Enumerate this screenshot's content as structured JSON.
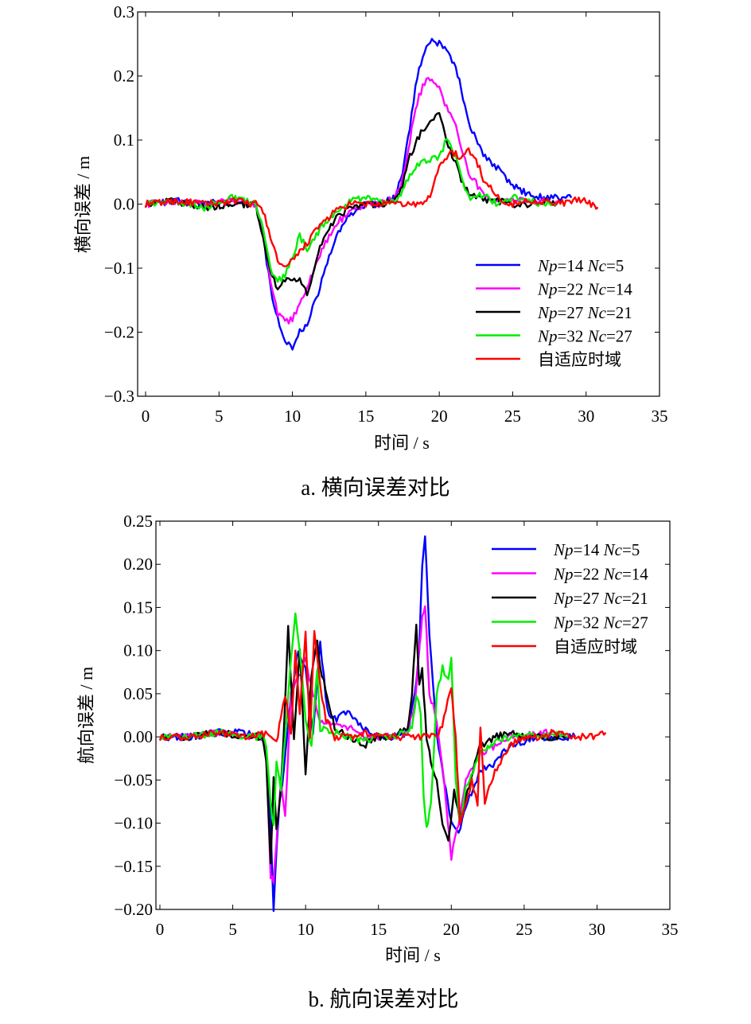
{
  "chart_data": [
    {
      "type": "line",
      "caption": "a. 横向误差对比",
      "xlabel": "时间 / s",
      "ylabel": "横向误差 / m",
      "xlim": [
        0,
        35
      ],
      "ylim": [
        -0.3,
        0.3
      ],
      "xticks": [
        0,
        5,
        10,
        15,
        20,
        25,
        30,
        35
      ],
      "xtick_labels": [
        "0",
        "5",
        "10",
        "15",
        "20",
        "25",
        "30",
        "35"
      ],
      "yticks": [
        -0.3,
        -0.2,
        -0.1,
        0.0,
        0.1,
        0.2,
        0.3
      ],
      "ytick_labels": [
        "−0.3",
        "−0.2",
        "−0.1",
        "0.0",
        "0.1",
        "0.2",
        "0.3"
      ],
      "legend_position": "lower-right",
      "grid": false,
      "series": [
        {
          "name": "Np=14 Nc=5",
          "name_parts": [
            "Np",
            "=14 ",
            "Nc",
            "=5"
          ],
          "color": "#0000ff",
          "x": [
            0,
            2,
            4,
            6,
            7.5,
            8,
            8.5,
            9,
            9.5,
            10,
            10.5,
            11,
            12,
            13,
            14,
            15,
            16,
            17,
            17.5,
            18,
            18.5,
            19,
            19.5,
            20,
            20.5,
            21,
            21.5,
            22,
            22.5,
            23,
            24,
            25,
            26,
            27,
            28,
            29
          ],
          "y": [
            0.0,
            0.005,
            0.0,
            0.005,
            0.0,
            -0.05,
            -0.13,
            -0.18,
            -0.21,
            -0.225,
            -0.2,
            -0.19,
            -0.12,
            -0.05,
            -0.015,
            0.0,
            0.0,
            0.01,
            0.05,
            0.12,
            0.2,
            0.24,
            0.255,
            0.25,
            0.24,
            0.22,
            0.18,
            0.13,
            0.1,
            0.08,
            0.055,
            0.03,
            0.015,
            0.01,
            0.01,
            0.01
          ]
        },
        {
          "name": "Np=22 Nc=14",
          "name_parts": [
            "Np",
            "=22 ",
            "Nc",
            "=14"
          ],
          "color": "#ff00ff",
          "x": [
            0,
            2,
            4,
            6,
            7.5,
            8,
            8.5,
            9,
            9.5,
            10,
            10.5,
            11,
            12,
            13,
            14,
            15,
            16,
            17,
            17.5,
            18,
            18.5,
            19,
            19.5,
            20,
            20.5,
            21,
            21.5,
            22,
            23,
            24,
            25,
            26,
            27,
            28
          ],
          "y": [
            0.0,
            0.005,
            0.0,
            0.005,
            0.0,
            -0.05,
            -0.12,
            -0.17,
            -0.185,
            -0.18,
            -0.16,
            -0.13,
            -0.07,
            -0.03,
            -0.01,
            0.0,
            0.0,
            0.01,
            0.04,
            0.1,
            0.16,
            0.19,
            0.195,
            0.18,
            0.15,
            0.13,
            0.09,
            0.05,
            0.015,
            0.005,
            0.005,
            0.005,
            0.005,
            0.005
          ]
        },
        {
          "name": "Np=27 Nc=21",
          "name_parts": [
            "Np",
            "=27 ",
            "Nc",
            "=21"
          ],
          "color": "#000000",
          "x": [
            0,
            2,
            4,
            6,
            7.5,
            8,
            8.5,
            9,
            9.5,
            10,
            10.5,
            11,
            12,
            13,
            14,
            15,
            16,
            17,
            17.5,
            18,
            18.5,
            19,
            19.5,
            20,
            20.5,
            21,
            21.5,
            22,
            23,
            24,
            25,
            26,
            27,
            28
          ],
          "y": [
            0.0,
            0.005,
            -0.005,
            0.0,
            0.0,
            -0.05,
            -0.11,
            -0.13,
            -0.12,
            -0.115,
            -0.12,
            -0.14,
            -0.06,
            -0.02,
            -0.005,
            0.0,
            0.0,
            0.005,
            0.03,
            0.075,
            0.1,
            0.12,
            0.135,
            0.14,
            0.1,
            0.07,
            0.04,
            0.02,
            0.005,
            0.005,
            0.0,
            0.0,
            0.005,
            0.0
          ]
        },
        {
          "name": "Np=32 Nc=27",
          "name_parts": [
            "Np",
            "=32 ",
            "Nc",
            "=27"
          ],
          "color": "#00ee00",
          "x": [
            0,
            2,
            4,
            6,
            7.5,
            8,
            8.5,
            9,
            9.5,
            10,
            10.5,
            11,
            12,
            13,
            14,
            15,
            16,
            17,
            17.5,
            18,
            18.5,
            19,
            19.5,
            20,
            20.5,
            21,
            21.5,
            22,
            23,
            24,
            25,
            26,
            27,
            28
          ],
          "y": [
            0.0,
            0.005,
            -0.005,
            0.01,
            0.0,
            -0.04,
            -0.1,
            -0.12,
            -0.11,
            -0.08,
            -0.05,
            -0.07,
            -0.035,
            -0.01,
            0.005,
            0.01,
            0.005,
            0.005,
            0.02,
            0.045,
            0.06,
            0.065,
            0.07,
            0.075,
            0.1,
            0.08,
            0.04,
            0.01,
            0.015,
            0.0,
            0.01,
            0.005,
            0.0,
            0.0
          ]
        },
        {
          "name": "自适应时域",
          "name_parts": [
            "自适应时域"
          ],
          "color": "#ff0000",
          "x": [
            0,
            2,
            4,
            6,
            7.5,
            8,
            8.5,
            9,
            9.5,
            10,
            10.5,
            11,
            12,
            13,
            14,
            15,
            16,
            17,
            18,
            19,
            19.5,
            20,
            20.5,
            21,
            21.5,
            22,
            22.5,
            23,
            24,
            25,
            26,
            27,
            28,
            29,
            30,
            30.8
          ],
          "y": [
            0.0,
            0.005,
            0.0,
            0.005,
            0.0,
            -0.01,
            -0.05,
            -0.09,
            -0.1,
            -0.09,
            -0.075,
            -0.06,
            -0.03,
            -0.01,
            0.0,
            0.0,
            0.0,
            0.0,
            0.0,
            0.0,
            0.02,
            0.06,
            0.075,
            0.08,
            0.07,
            0.085,
            0.07,
            0.04,
            0.01,
            0.0,
            0.005,
            0.005,
            0.0,
            0.005,
            0.005,
            -0.005
          ]
        }
      ]
    },
    {
      "type": "line",
      "caption": "b. 航向误差对比",
      "xlabel": "时间 / s",
      "ylabel": "航向误差 / m",
      "xlim": [
        0,
        35
      ],
      "ylim": [
        -0.2,
        0.25
      ],
      "xticks": [
        0,
        5,
        10,
        15,
        20,
        25,
        30,
        35
      ],
      "xtick_labels": [
        "0",
        "5",
        "10",
        "15",
        "20",
        "25",
        "30",
        "35"
      ],
      "yticks": [
        -0.2,
        -0.15,
        -0.1,
        -0.05,
        0.0,
        0.05,
        0.1,
        0.15,
        0.2,
        0.25
      ],
      "ytick_labels": [
        "−0.20",
        "−0.15",
        "−0.10",
        "−0.05",
        "0.00",
        "0.05",
        "0.10",
        "0.15",
        "0.20",
        "0.25"
      ],
      "legend_position": "top-right",
      "grid": false,
      "series": [
        {
          "name": "Np=14 Nc=5",
          "name_parts": [
            "Np",
            "=14 ",
            "Nc",
            "=5"
          ],
          "color": "#0000ff",
          "x": [
            0,
            2,
            4,
            6,
            7,
            7.3,
            7.6,
            7.8,
            8.0,
            8.2,
            8.5,
            9.0,
            9.5,
            10.0,
            10.5,
            11.0,
            11.5,
            12,
            13,
            14,
            15,
            16,
            17,
            17.5,
            17.8,
            18.0,
            18.2,
            18.5,
            19.0,
            19.5,
            20.0,
            20.5,
            21,
            22,
            23,
            24,
            25,
            26,
            27,
            28,
            28.5
          ],
          "y": [
            0.0,
            0.0,
            0.005,
            0.005,
            0.0,
            -0.02,
            -0.1,
            -0.2,
            -0.13,
            -0.08,
            -0.04,
            0.05,
            0.1,
            0.08,
            0.0,
            0.11,
            0.03,
            0.02,
            0.03,
            0.01,
            0.0,
            0.0,
            0.005,
            0.05,
            0.1,
            0.2,
            0.235,
            0.12,
            0.0,
            -0.05,
            -0.1,
            -0.11,
            -0.08,
            -0.04,
            -0.03,
            -0.01,
            -0.005,
            0.0,
            0.0,
            0.0,
            0.0
          ]
        },
        {
          "name": "Np=22 Nc=14",
          "name_parts": [
            "Np",
            "=22 ",
            "Nc",
            "=14"
          ],
          "color": "#ff00ff",
          "x": [
            0,
            2,
            4,
            6,
            7,
            7.3,
            7.6,
            7.8,
            8.0,
            8.3,
            8.6,
            9.0,
            9.5,
            10,
            10.5,
            11,
            12,
            13,
            14,
            15,
            16,
            17,
            17.5,
            17.8,
            18.0,
            18.2,
            18.5,
            19,
            19.5,
            20,
            20.5,
            21,
            22,
            23,
            24,
            25,
            26,
            27,
            28
          ],
          "y": [
            0.0,
            0.0,
            0.005,
            0.0,
            0.0,
            -0.02,
            -0.16,
            -0.17,
            -0.12,
            -0.05,
            -0.09,
            0.05,
            0.07,
            0.09,
            0.05,
            0.02,
            0.015,
            0.01,
            0.0,
            0.0,
            0.0,
            0.005,
            0.04,
            0.1,
            0.14,
            0.15,
            0.05,
            0.02,
            -0.05,
            -0.14,
            -0.1,
            -0.05,
            -0.02,
            -0.01,
            0.0,
            0.0,
            0.005,
            0.005,
            0.0
          ]
        },
        {
          "name": "Np=27 Nc=21",
          "name_parts": [
            "Np",
            "=27 ",
            "Nc",
            "=21"
          ],
          "color": "#000000",
          "x": [
            0,
            2,
            4,
            6,
            7,
            7.3,
            7.6,
            7.8,
            8.0,
            8.3,
            8.6,
            8.8,
            9.2,
            9.6,
            10.0,
            10.4,
            10.8,
            11,
            12,
            13,
            14,
            15,
            16,
            17,
            17.3,
            17.6,
            17.8,
            18.0,
            18.3,
            18.6,
            19.0,
            19.4,
            19.8,
            20.2,
            20.6,
            21,
            22,
            23,
            24,
            25,
            26,
            27,
            28
          ],
          "y": [
            0.0,
            0.0,
            0.005,
            0.0,
            0.0,
            -0.03,
            -0.15,
            -0.05,
            -0.11,
            -0.06,
            0.04,
            0.13,
            0.0,
            0.1,
            -0.04,
            0.07,
            0.11,
            0.08,
            0.01,
            0.0,
            -0.01,
            0.0,
            0.0,
            0.01,
            0.05,
            0.13,
            0.06,
            0.08,
            0.0,
            -0.03,
            -0.05,
            -0.1,
            -0.12,
            -0.06,
            -0.1,
            -0.07,
            -0.01,
            0.0,
            0.005,
            0.0,
            0.0,
            0.0,
            0.0
          ]
        },
        {
          "name": "Np=32 Nc=27",
          "name_parts": [
            "Np",
            "=32 ",
            "Nc",
            "=27"
          ],
          "color": "#00ee00",
          "x": [
            0,
            2,
            4,
            6,
            7,
            7.3,
            7.6,
            7.8,
            8.0,
            8.3,
            8.6,
            9.0,
            9.3,
            9.6,
            10.0,
            10.4,
            10.8,
            11,
            12,
            13,
            14,
            15,
            16,
            17,
            17.3,
            17.6,
            17.9,
            18.1,
            18.3,
            18.6,
            19.0,
            19.4,
            19.8,
            20.0,
            20.3,
            20.6,
            21,
            22,
            23,
            24,
            25,
            26,
            27,
            28
          ],
          "y": [
            0.0,
            0.0,
            0.005,
            0.0,
            0.0,
            -0.01,
            -0.08,
            -0.1,
            -0.03,
            -0.06,
            0.0,
            0.09,
            0.14,
            0.1,
            0.02,
            -0.01,
            0.08,
            0.01,
            0.005,
            0.0,
            -0.005,
            0.0,
            0.0,
            0.005,
            0.01,
            0.05,
            0.03,
            -0.07,
            -0.105,
            -0.08,
            0.05,
            0.08,
            0.065,
            0.095,
            -0.05,
            -0.1,
            -0.06,
            -0.02,
            -0.005,
            0.0,
            0.005,
            0.0,
            0.005,
            0.0
          ]
        },
        {
          "name": "自适应时域",
          "name_parts": [
            "自适应时域"
          ],
          "color": "#ff0000",
          "x": [
            0,
            2,
            4,
            6,
            7,
            7.5,
            8.0,
            8.3,
            8.6,
            9.0,
            9.3,
            9.6,
            10.0,
            10.3,
            10.6,
            11.0,
            11.4,
            12,
            13,
            14,
            15,
            16,
            17,
            18,
            19.0,
            19.5,
            20.0,
            20.3,
            20.6,
            21.0,
            21.4,
            21.8,
            22.0,
            22.3,
            22.6,
            23,
            24,
            25,
            26,
            27,
            28,
            29,
            30,
            30.6
          ],
          "y": [
            0.0,
            0.0,
            0.005,
            0.0,
            0.005,
            0.0,
            -0.005,
            0.02,
            0.05,
            0.0,
            0.1,
            0.03,
            0.12,
            0.0,
            0.12,
            0.06,
            0.02,
            0.0,
            0.0,
            0.005,
            0.0,
            0.0,
            0.0,
            0.0,
            0.0,
            0.02,
            0.06,
            0.0,
            -0.1,
            -0.08,
            -0.05,
            -0.08,
            0.01,
            -0.08,
            -0.06,
            -0.04,
            -0.01,
            0.0,
            0.0,
            0.005,
            0.0,
            0.0,
            0.0,
            0.005
          ]
        }
      ]
    }
  ]
}
